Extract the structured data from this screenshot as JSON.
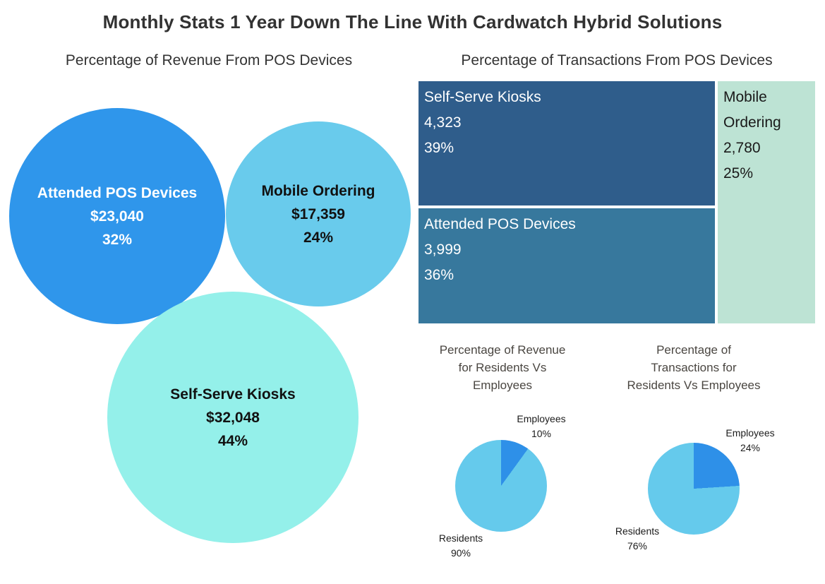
{
  "page_title": "Monthly Stats 1 Year Down The Line With Cardwatch Hybrid Solutions",
  "palette": {
    "bubble_attended": "#2f96eb",
    "bubble_mobile": "#69cbec",
    "bubble_kiosks": "#94f0ea",
    "treemap_kiosks": "#2f5d8b",
    "treemap_attended": "#37789d",
    "treemap_mobile": "#bde3d4",
    "pie_employees": "#2e90e8",
    "pie_residents": "#65caec",
    "title_text": "#323232",
    "pie_title_text": "#4a4641"
  },
  "chart_data": [
    {
      "type": "bubble",
      "title": "Percentage of Revenue From POS Devices",
      "sizing": "area proportional to value",
      "series": [
        {
          "name": "Attended POS Devices",
          "value": 23040,
          "value_label": "$23,040",
          "percent": 32,
          "percent_label": "32%",
          "color": "#2f96eb",
          "text_color": "#ffffff"
        },
        {
          "name": "Mobile Ordering",
          "value": 17359,
          "value_label": "$17,359",
          "percent": 24,
          "percent_label": "24%",
          "color": "#69cbec",
          "text_color": "#111111"
        },
        {
          "name": "Self-Serve Kiosks",
          "value": 32048,
          "value_label": "$32,048",
          "percent": 44,
          "percent_label": "44%",
          "color": "#94f0ea",
          "text_color": "#111111"
        }
      ]
    },
    {
      "type": "treemap",
      "title": "Percentage of Transactions From POS Devices",
      "series": [
        {
          "name": "Self-Serve Kiosks",
          "value": 4323,
          "value_label": "4,323",
          "percent": 39,
          "percent_label": "39%",
          "color": "#2f5d8b",
          "text_color": "#ffffff"
        },
        {
          "name": "Attended POS Devices",
          "value": 3999,
          "value_label": "3,999",
          "percent": 36,
          "percent_label": "36%",
          "color": "#37789d",
          "text_color": "#ffffff"
        },
        {
          "name": "Mobile Ordering",
          "value": 2780,
          "value_label": "2,780",
          "percent": 25,
          "percent_label": "25%",
          "color": "#bde3d4",
          "text_color": "#1a1a1a"
        }
      ]
    },
    {
      "type": "pie",
      "title_lines": [
        "Percentage of Revenue",
        "for Residents Vs",
        "Employees"
      ],
      "start": "12 o'clock, clockwise",
      "slices": [
        {
          "name": "Employees",
          "percent": 10,
          "percent_label": "10%",
          "color": "#2e90e8"
        },
        {
          "name": "Residents",
          "percent": 90,
          "percent_label": "90%",
          "color": "#65caec"
        }
      ]
    },
    {
      "type": "pie",
      "title_lines": [
        "Percentage of",
        "Transactions for",
        "Residents Vs Employees"
      ],
      "start": "12 o'clock, clockwise",
      "slices": [
        {
          "name": "Employees",
          "percent": 24,
          "percent_label": "24%",
          "color": "#2e90e8"
        },
        {
          "name": "Residents",
          "percent": 76,
          "percent_label": "76%",
          "color": "#65caec"
        }
      ]
    }
  ]
}
